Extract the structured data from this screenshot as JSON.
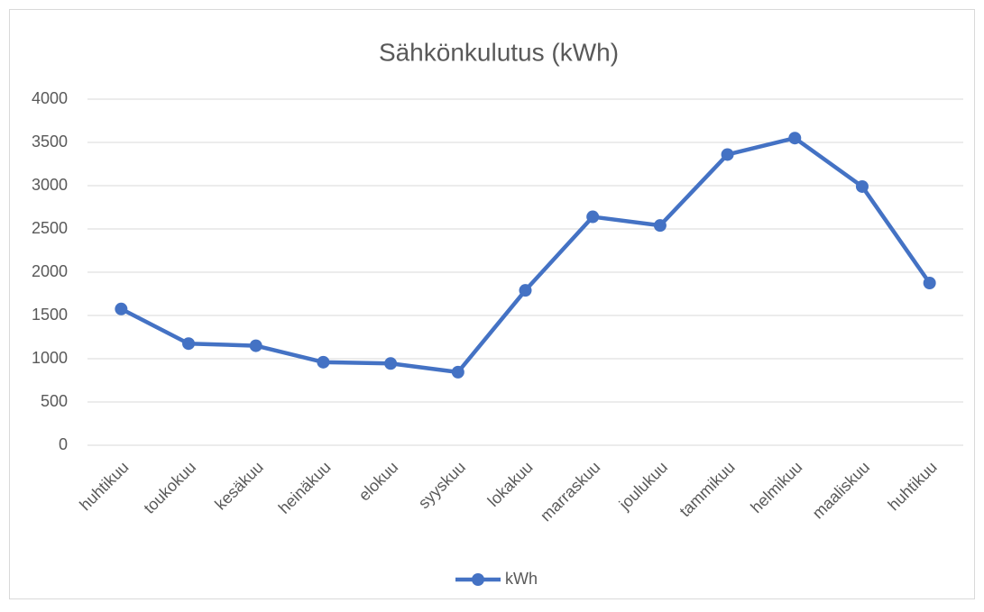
{
  "chart_data": {
    "type": "line",
    "title": "Sähkönkulutus (kWh)",
    "categories": [
      "huhtikuu",
      "toukokuu",
      "kesäkuu",
      "heinäkuu",
      "elokuu",
      "syyskuu",
      "lokakuu",
      "marraskuu",
      "joulukuu",
      "tammikuu",
      "helmikuu",
      "maaliskuu",
      "huhtikuu"
    ],
    "series": [
      {
        "name": "kWh",
        "color": "#4472c4",
        "values": [
          1575,
          1175,
          1150,
          960,
          945,
          845,
          1790,
          2640,
          2540,
          3360,
          3550,
          2990,
          1875
        ]
      }
    ],
    "ylim": [
      0,
      4000
    ],
    "yticks": [
      0,
      500,
      1000,
      1500,
      2000,
      2500,
      3000,
      3500,
      4000
    ],
    "grid": true,
    "legend": "bottom"
  }
}
